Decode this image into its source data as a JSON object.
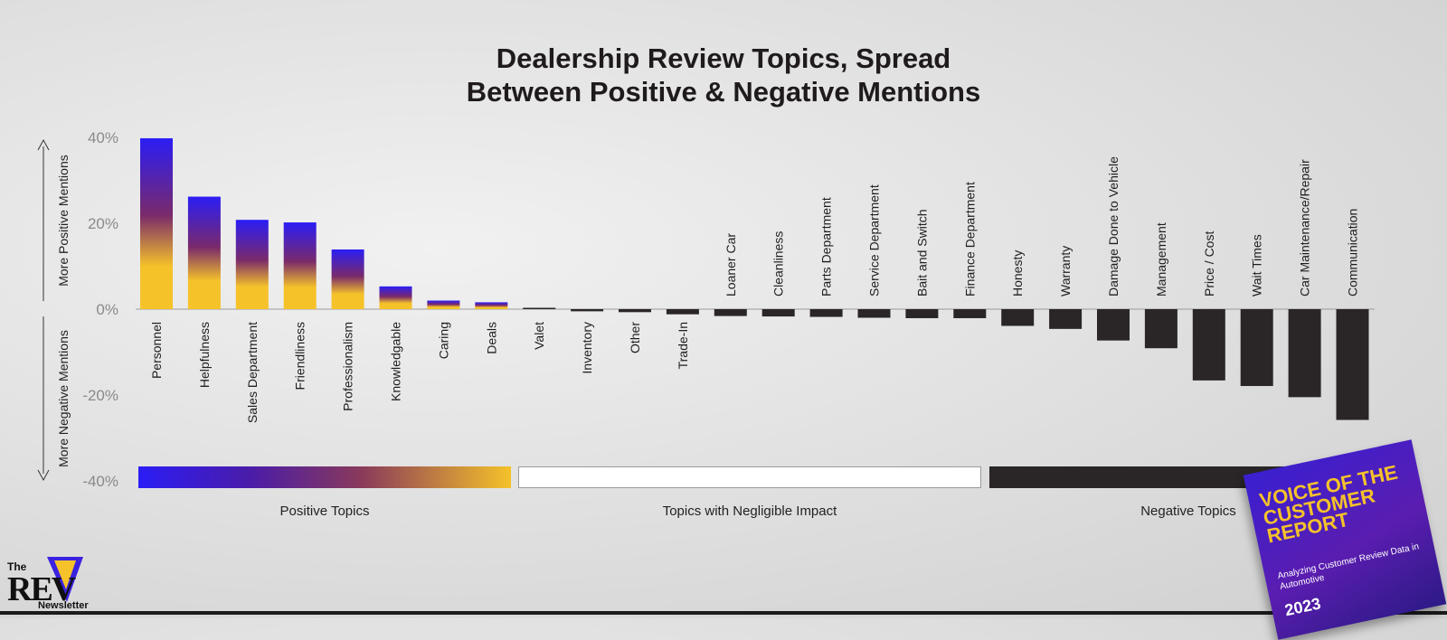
{
  "title_line1": "Dealership Review Topics, Spread",
  "title_line2": "Between Positive & Negative Mentions",
  "ylabel_positive": "More Positive Mentions",
  "ylabel_negative": "More Negative Mentions",
  "legend": {
    "positive": "Positive Topics",
    "negligible": "Topics with Negligible Impact",
    "negative": "Negative Topics"
  },
  "logo": {
    "the": "The",
    "rev": "REV",
    "newsletter": "Newsletter"
  },
  "report_cover": {
    "title": "VOICE OF THE CUSTOMER REPORT",
    "subtitle": "Analyzing Customer Review Data in Automotive",
    "year": "2023"
  },
  "colors": {
    "positive_top": "#2b1df5",
    "positive_mid": "#7a2a6a",
    "positive_bottom": "#f5c22a",
    "negative": "#2a2627",
    "axis_text": "#8a8a8a"
  },
  "chart_data": {
    "type": "bar",
    "ylim": [
      -40,
      40
    ],
    "yticks": [
      40,
      20,
      0,
      -20,
      -40
    ],
    "ytick_labels": [
      "40%",
      "20%",
      "0%",
      "-20%",
      "-40%"
    ],
    "categories": [
      "Personnel",
      "Helpfulness",
      "Sales Department",
      "Friendliness",
      "Professionalism",
      "Knowledgable",
      "Caring",
      "Deals",
      "Valet",
      "Inventory",
      "Other",
      "Trade-In",
      "Loaner Car",
      "Cleanliness",
      "Parts Department",
      "Service Department",
      "Bait and Switch",
      "Finance Department",
      "Honesty",
      "Warranty",
      "Damage Done to Vehicle",
      "Management",
      "Price / Cost",
      "Wait Times",
      "Car Maintenance/Repair",
      "Communication"
    ],
    "values": [
      39.8,
      26.2,
      20.8,
      20.2,
      13.9,
      5.3,
      2.0,
      1.6,
      0.3,
      -0.5,
      -0.7,
      -1.2,
      -1.6,
      -1.7,
      -1.8,
      -2.0,
      -2.1,
      -2.1,
      -3.9,
      -4.6,
      -7.3,
      -9.1,
      -16.6,
      -17.9,
      -20.5,
      -25.8
    ],
    "groups": [
      "positive",
      "positive",
      "positive",
      "positive",
      "positive",
      "positive",
      "positive",
      "positive",
      "negligible",
      "negligible",
      "negligible",
      "negligible",
      "negative",
      "negative",
      "negative",
      "negative",
      "negative",
      "negative",
      "negative",
      "negative",
      "negative",
      "negative",
      "negative",
      "negative",
      "negative",
      "negative"
    ]
  }
}
